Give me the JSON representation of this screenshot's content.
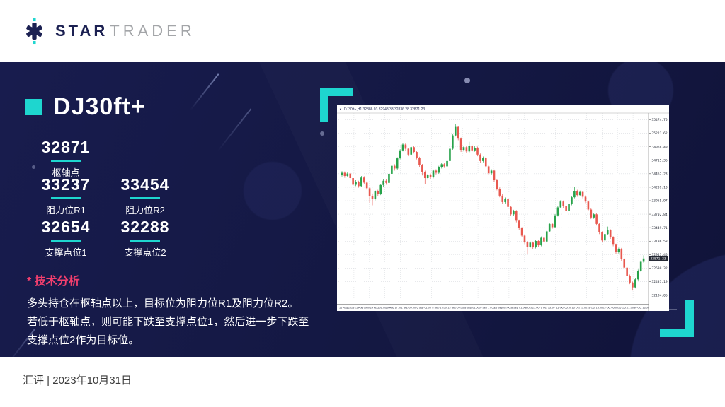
{
  "header": {
    "brand_bold": "STAR",
    "brand_light": "TRADER"
  },
  "title": "DJ30ft+",
  "levels": {
    "pivot": {
      "value": "32871",
      "label": "枢轴点"
    },
    "r1": {
      "value": "33237",
      "label": "阻力位R1"
    },
    "r2": {
      "value": "33454",
      "label": "阻力位R2"
    },
    "s1": {
      "value": "32654",
      "label": "支撑点位1"
    },
    "s2": {
      "value": "32288",
      "label": "支撑点位2"
    }
  },
  "analysis": {
    "heading": "* 技术分析",
    "lines": [
      "多头持仓在枢轴点以上，目标位为阻力位R1及阻力位R2。",
      "若低于枢轴点，则可能下跌至支撑点位1，然后进一步下跌至",
      "支撑点位2作为目标位。"
    ]
  },
  "footer": {
    "text": "汇评 | 2023年10月31日"
  },
  "icons": {
    "chart_caret": "▼"
  },
  "colors": {
    "accent_teal": "#1ed6cf",
    "accent_pink": "#f43f6e",
    "navy_bg": "#141843",
    "logo_navy": "#1c2152",
    "logo_gray": "#a3a5a8"
  },
  "chart_data": {
    "type": "candlestick",
    "title": "DJ30ft+,H1 32886.03 32948.33 32836.28 32871.23",
    "legend_position": "none",
    "grid": "dotted",
    "up_color": "#27a24a",
    "down_color": "#e8584f",
    "last_price": "32871.23",
    "price_view_max": 35560,
    "price_view_min": 32060,
    "price_labels": [
      "35474.75",
      "35221.62",
      "34968.49",
      "34715.36",
      "34462.23",
      "34209.10",
      "33955.97",
      "33702.84",
      "33449.71",
      "33196.58",
      "32943.45",
      "32690.32",
      "32437.19",
      "32184.06"
    ],
    "time_labels": [
      "16 Aug 2023",
      "21 Aug 09:00",
      "24 Aug 01:00",
      "29 Aug 17:00",
      "1 Sep 09:00",
      "6 Sep 01:00",
      "8 Sep 17:00",
      "13 Sep 09:00",
      "18 Sep 01:00",
      "20 Sep 17:00",
      "25 Sep 09:00",
      "28 Sep 01:00",
      "3 Oct 21:00",
      "6 Oct 13:00",
      "11 Oct 05:00",
      "13 Oct 21:00",
      "18 Oct 13:00",
      "23 Oct 05:00",
      "26 Oct 21:00",
      "30 Oct 13:00"
    ],
    "candles": [
      [
        34440,
        34510,
        34410,
        34480
      ],
      [
        34480,
        34505,
        34385,
        34420
      ],
      [
        34420,
        34490,
        34395,
        34465
      ],
      [
        34465,
        34480,
        34345,
        34380
      ],
      [
        34380,
        34400,
        34225,
        34255
      ],
      [
        34255,
        34340,
        34230,
        34310
      ],
      [
        34310,
        34330,
        34200,
        34230
      ],
      [
        34230,
        34420,
        34210,
        34390
      ],
      [
        34390,
        34415,
        34270,
        34295
      ],
      [
        34295,
        34320,
        34160,
        34190
      ],
      [
        34190,
        34210,
        33920,
        34040
      ],
      [
        34040,
        34090,
        33870,
        33985
      ],
      [
        33985,
        34150,
        33960,
        34130
      ],
      [
        34130,
        34160,
        34040,
        34080
      ],
      [
        34080,
        34270,
        34060,
        34250
      ],
      [
        34250,
        34360,
        34220,
        34330
      ],
      [
        34330,
        34355,
        34255,
        34290
      ],
      [
        34290,
        34480,
        34270,
        34460
      ],
      [
        34460,
        34640,
        34440,
        34610
      ],
      [
        34610,
        34640,
        34520,
        34560
      ],
      [
        34560,
        34770,
        34540,
        34750
      ],
      [
        34750,
        34920,
        34730,
        34900
      ],
      [
        34900,
        35040,
        34880,
        35010
      ],
      [
        35010,
        35030,
        34890,
        34930
      ],
      [
        34930,
        34950,
        34790,
        34820
      ],
      [
        34820,
        34990,
        34800,
        34960
      ],
      [
        34960,
        34985,
        34840,
        34870
      ],
      [
        34870,
        34895,
        34730,
        34760
      ],
      [
        34760,
        34780,
        34590,
        34620
      ],
      [
        34620,
        34645,
        34430,
        34500
      ],
      [
        34500,
        34520,
        34270,
        34380
      ],
      [
        34380,
        34460,
        34350,
        34440
      ],
      [
        34440,
        34465,
        34360,
        34395
      ],
      [
        34395,
        34540,
        34375,
        34520
      ],
      [
        34520,
        34545,
        34450,
        34480
      ],
      [
        34480,
        34610,
        34460,
        34590
      ],
      [
        34590,
        34660,
        34560,
        34640
      ],
      [
        34640,
        34665,
        34570,
        34600
      ],
      [
        34600,
        34720,
        34580,
        34700
      ],
      [
        34700,
        34950,
        34680,
        34930
      ],
      [
        34930,
        35200,
        34910,
        35180
      ],
      [
        35180,
        35400,
        35160,
        35340
      ],
      [
        35340,
        35360,
        35090,
        35120
      ],
      [
        35120,
        35140,
        34870,
        34910
      ],
      [
        34910,
        34985,
        34880,
        34960
      ],
      [
        34960,
        34980,
        34850,
        34880
      ],
      [
        34880,
        35060,
        34860,
        34990
      ],
      [
        34990,
        35010,
        34870,
        34900
      ],
      [
        34900,
        34975,
        34875,
        34950
      ],
      [
        34950,
        34970,
        34790,
        34820
      ],
      [
        34820,
        34840,
        34670,
        34700
      ],
      [
        34700,
        34785,
        34675,
        34760
      ],
      [
        34760,
        34780,
        34570,
        34600
      ],
      [
        34600,
        34620,
        34440,
        34470
      ],
      [
        34470,
        34545,
        34445,
        34520
      ],
      [
        34520,
        34540,
        34310,
        34340
      ],
      [
        34340,
        34360,
        34150,
        34180
      ],
      [
        34180,
        34205,
        34020,
        34050
      ],
      [
        34050,
        34075,
        33900,
        33930
      ],
      [
        33930,
        34015,
        33905,
        33990
      ],
      [
        33990,
        34010,
        33815,
        33840
      ],
      [
        33840,
        33860,
        33670,
        33700
      ],
      [
        33700,
        33785,
        33675,
        33760
      ],
      [
        33760,
        33780,
        33550,
        33580
      ],
      [
        33580,
        33600,
        33410,
        33440
      ],
      [
        33440,
        33460,
        33270,
        33300
      ],
      [
        33300,
        33320,
        33150,
        33180
      ],
      [
        33180,
        33200,
        32950,
        33090
      ],
      [
        33090,
        33195,
        33065,
        33170
      ],
      [
        33170,
        33190,
        33050,
        33080
      ],
      [
        33080,
        33225,
        33060,
        33200
      ],
      [
        33200,
        33220,
        33090,
        33120
      ],
      [
        33120,
        33285,
        33100,
        33260
      ],
      [
        33260,
        33280,
        33160,
        33190
      ],
      [
        33190,
        33405,
        33170,
        33380
      ],
      [
        33380,
        33545,
        33360,
        33520
      ],
      [
        33520,
        33540,
        33430,
        33460
      ],
      [
        33460,
        33705,
        33440,
        33680
      ],
      [
        33680,
        33855,
        33660,
        33830
      ],
      [
        33830,
        33965,
        33810,
        33940
      ],
      [
        33940,
        33960,
        33820,
        33850
      ],
      [
        33850,
        33875,
        33740,
        33770
      ],
      [
        33770,
        33915,
        33750,
        33890
      ],
      [
        33890,
        34045,
        33870,
        34020
      ],
      [
        34020,
        34210,
        34000,
        34140
      ],
      [
        34140,
        34160,
        34030,
        34060
      ],
      [
        34060,
        34145,
        34035,
        34120
      ],
      [
        34120,
        34140,
        34000,
        34030
      ],
      [
        34030,
        34055,
        33910,
        33940
      ],
      [
        33940,
        33960,
        33760,
        33790
      ],
      [
        33790,
        33810,
        33610,
        33640
      ],
      [
        33640,
        33725,
        33615,
        33700
      ],
      [
        33700,
        33720,
        33490,
        33520
      ],
      [
        33520,
        33540,
        33330,
        33360
      ],
      [
        33360,
        33380,
        33180,
        33210
      ],
      [
        33210,
        33355,
        33190,
        33330
      ],
      [
        33330,
        33470,
        33310,
        33400
      ],
      [
        33400,
        33420,
        33240,
        33270
      ],
      [
        33270,
        33290,
        33100,
        33130
      ],
      [
        33130,
        33150,
        32960,
        32990
      ],
      [
        32990,
        33075,
        32965,
        33050
      ],
      [
        33050,
        33070,
        32830,
        32860
      ],
      [
        32860,
        32880,
        32670,
        32700
      ],
      [
        32700,
        32720,
        32520,
        32550
      ],
      [
        32550,
        32570,
        32390,
        32420
      ],
      [
        32420,
        32440,
        32270,
        32330
      ],
      [
        32330,
        32505,
        32310,
        32480
      ],
      [
        32480,
        32665,
        32460,
        32640
      ],
      [
        32640,
        32835,
        32620,
        32810
      ],
      [
        32810,
        32930,
        32790,
        32871
      ]
    ]
  }
}
